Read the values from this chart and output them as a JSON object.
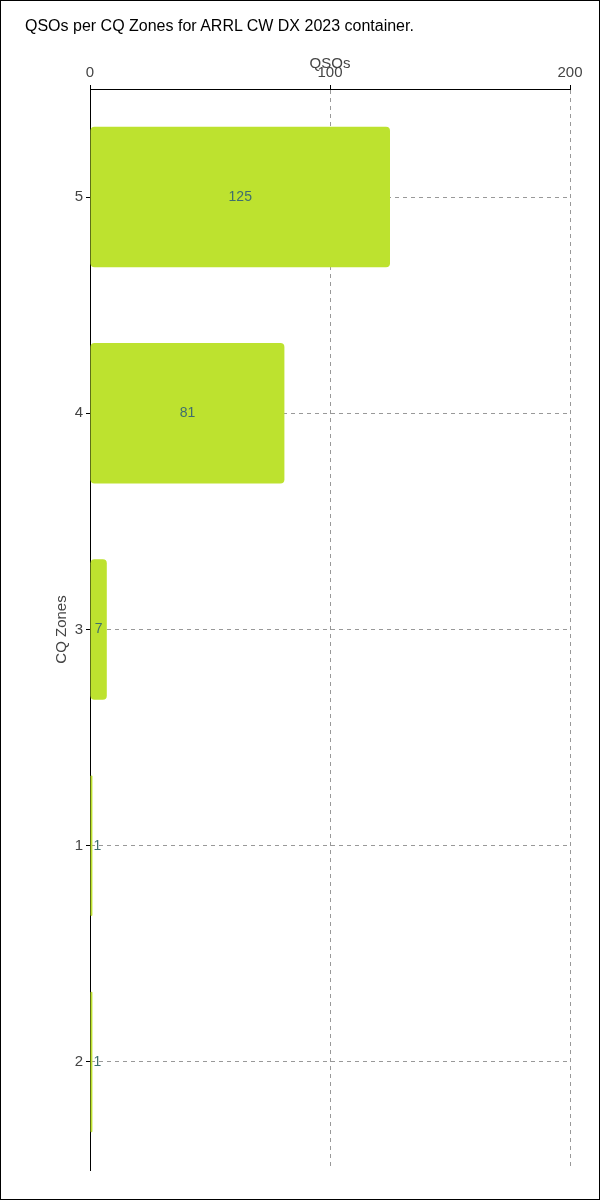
{
  "chart_data": {
    "type": "bar",
    "orientation": "horizontal",
    "title": "QSOs per CQ Zones for ARRL CW DX 2023 container.",
    "xlabel": "QSOs",
    "ylabel": "CQ Zones",
    "categories": [
      "5",
      "4",
      "3",
      "1",
      "2"
    ],
    "values": [
      125,
      81,
      7,
      1,
      1
    ],
    "color": "#bde22f",
    "xlim": [
      0,
      200
    ],
    "xticks": [
      0,
      100,
      200
    ],
    "grid": true,
    "data_labels": true
  }
}
